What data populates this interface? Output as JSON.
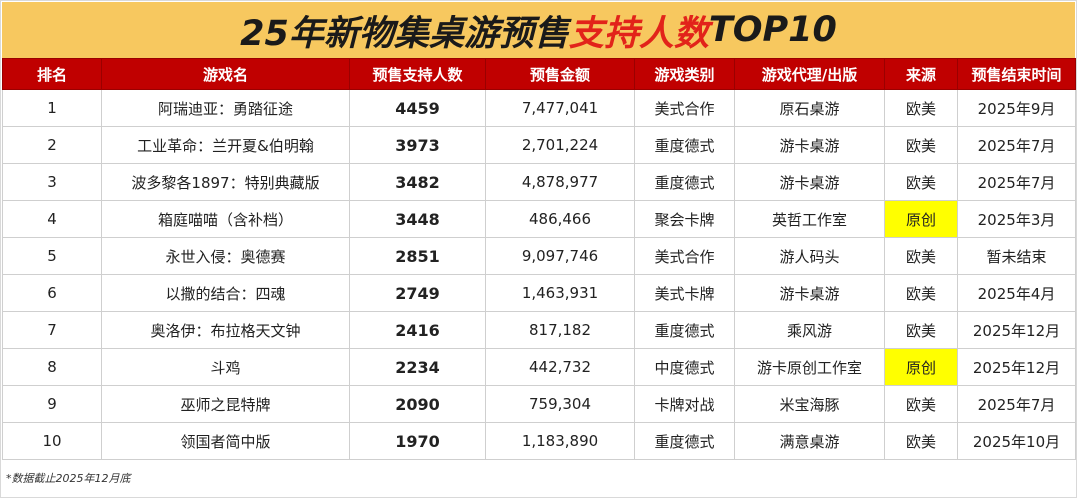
{
  "title": {
    "part1": "25年新物集桌游预售",
    "part2": "支持人数",
    "part3": "TOP10"
  },
  "headers": [
    "排名",
    "游戏名",
    "预售支持人数",
    "预售金额",
    "游戏类别",
    "游戏代理/出版",
    "来源",
    "预售结束时间"
  ],
  "rows": [
    {
      "rank": "1",
      "name": "阿瑞迪亚：勇踏征途",
      "supporters": "4459",
      "amount": "7,477,041",
      "category": "美式合作",
      "publisher": "原石桌游",
      "origin": "欧美",
      "end": "2025年9月",
      "highlight": false
    },
    {
      "rank": "2",
      "name": "工业革命：兰开夏&伯明翰",
      "supporters": "3973",
      "amount": "2,701,224",
      "category": "重度德式",
      "publisher": "游卡桌游",
      "origin": "欧美",
      "end": "2025年7月",
      "highlight": false
    },
    {
      "rank": "3",
      "name": "波多黎各1897：特别典藏版",
      "supporters": "3482",
      "amount": "4,878,977",
      "category": "重度德式",
      "publisher": "游卡桌游",
      "origin": "欧美",
      "end": "2025年7月",
      "highlight": false
    },
    {
      "rank": "4",
      "name": "箱庭喵喵（含补档）",
      "supporters": "3448",
      "amount": "486,466",
      "category": "聚会卡牌",
      "publisher": "英哲工作室",
      "origin": "原创",
      "end": "2025年3月",
      "highlight": true
    },
    {
      "rank": "5",
      "name": "永世入侵：奥德赛",
      "supporters": "2851",
      "amount": "9,097,746",
      "category": "美式合作",
      "publisher": "游人码头",
      "origin": "欧美",
      "end": "暂未结束",
      "highlight": false
    },
    {
      "rank": "6",
      "name": "以撒的结合：四魂",
      "supporters": "2749",
      "amount": "1,463,931",
      "category": "美式卡牌",
      "publisher": "游卡桌游",
      "origin": "欧美",
      "end": "2025年4月",
      "highlight": false
    },
    {
      "rank": "7",
      "name": "奥洛伊：布拉格天文钟",
      "supporters": "2416",
      "amount": "817,182",
      "category": "重度德式",
      "publisher": "乘风游",
      "origin": "欧美",
      "end": "2025年12月",
      "highlight": false
    },
    {
      "rank": "8",
      "name": "斗鸡",
      "supporters": "2234",
      "amount": "442,732",
      "category": "中度德式",
      "publisher": "游卡原创工作室",
      "origin": "原创",
      "end": "2025年12月",
      "highlight": true
    },
    {
      "rank": "9",
      "name": "巫师之昆特牌",
      "supporters": "2090",
      "amount": "759,304",
      "category": "卡牌对战",
      "publisher": "米宝海豚",
      "origin": "欧美",
      "end": "2025年7月",
      "highlight": false
    },
    {
      "rank": "10",
      "name": "领国者简中版",
      "supporters": "1970",
      "amount": "1,183,890",
      "category": "重度德式",
      "publisher": "满意桌游",
      "origin": "欧美",
      "end": "2025年10月",
      "highlight": false
    }
  ],
  "footnote": "*数据截止2025年12月底",
  "colors": {
    "title_bg": "#f7c85f",
    "title_accent": "#e2231a",
    "header_bg": "#c00000",
    "highlight": "#ffff00"
  }
}
